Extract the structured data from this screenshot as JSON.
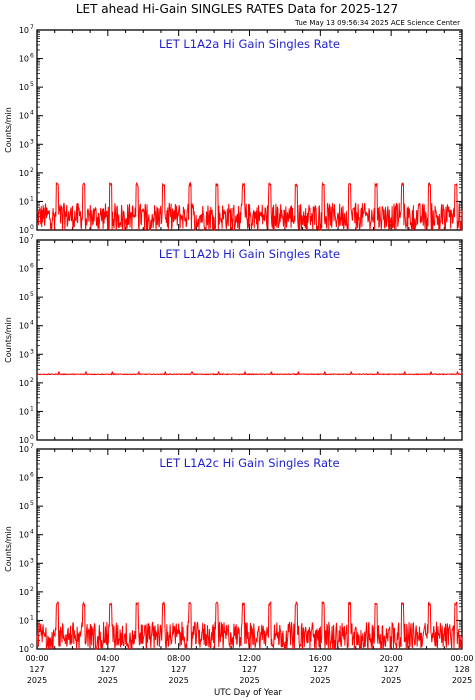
{
  "page": {
    "title": "LET ahead Hi-Gain SINGLES RATES Data for 2025-127",
    "timestamp": "Tue May 13 09:56:34 2025 ACE Science Center"
  },
  "chart_data": [
    {
      "type": "line",
      "label": "LET L1A2a Hi Gain Singles Rate",
      "ylabel": "Counts/min",
      "yscale": "log",
      "ylim": [
        1,
        10000000
      ],
      "xlim": [
        "127 00:00",
        "128 00:00"
      ],
      "color": "#ff0000",
      "baseline_range": [
        1,
        9
      ],
      "spike_peak": 40,
      "spike_count": 16,
      "spike_interval_hours": 1.5
    },
    {
      "type": "line",
      "label": "LET L1A2b Hi Gain Singles Rate",
      "ylabel": "Counts/min",
      "yscale": "log",
      "ylim": [
        1,
        10000000
      ],
      "xlim": [
        "127 00:00",
        "128 00:00"
      ],
      "color": "#ff0000",
      "baseline_value": 200,
      "spike_peak": 240
    },
    {
      "type": "line",
      "label": "LET L1A2c Hi Gain Singles Rate",
      "ylabel": "Counts/min",
      "yscale": "log",
      "ylim": [
        1,
        10000000
      ],
      "xlim": [
        "127 00:00",
        "128 00:00"
      ],
      "color": "#ff0000",
      "baseline_range": [
        1,
        9
      ],
      "spike_peak": 40,
      "spike_count": 16,
      "spike_interval_hours": 1.5
    }
  ],
  "x_axis": {
    "label": "UTC Day of Year",
    "ticks": [
      {
        "time": "00:00",
        "day": "127",
        "year": "2025"
      },
      {
        "time": "04:00",
        "day": "127",
        "year": "2025"
      },
      {
        "time": "08:00",
        "day": "127",
        "year": "2025"
      },
      {
        "time": "12:00",
        "day": "127",
        "year": "2025"
      },
      {
        "time": "16:00",
        "day": "127",
        "year": "2025"
      },
      {
        "time": "20:00",
        "day": "127",
        "year": "2025"
      },
      {
        "time": "00:00",
        "day": "128",
        "year": "2025"
      }
    ]
  }
}
